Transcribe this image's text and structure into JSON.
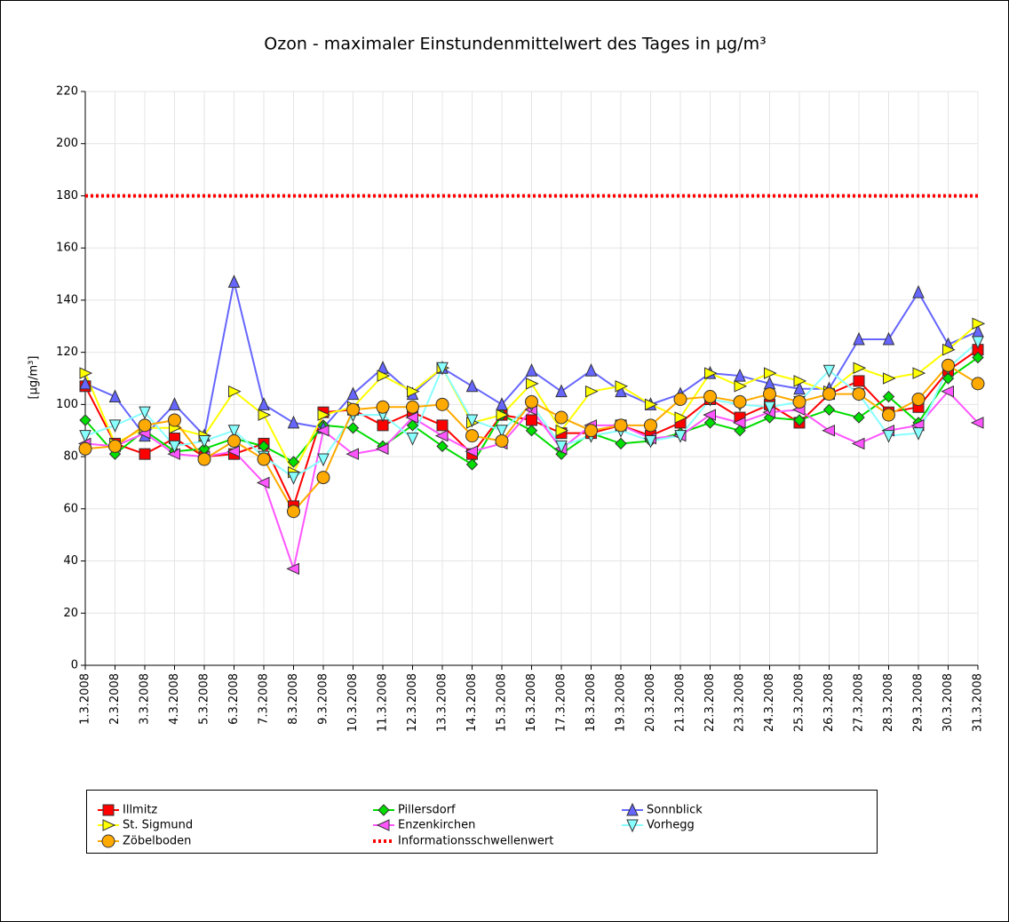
{
  "chart_data": {
    "type": "line",
    "title": "Ozon -  maximaler Einstundenmittelwert des Tages in µg/m³",
    "y_label": "[µg/m³]",
    "categories": [
      "1.3.2008",
      "2.3.2008",
      "3.3.2008",
      "4.3.2008",
      "5.3.2008",
      "6.3.2008",
      "7.3.2008",
      "8.3.2008",
      "9.3.2008",
      "10.3.2008",
      "11.3.2008",
      "12.3.2008",
      "13.3.2008",
      "14.3.2008",
      "15.3.2008",
      "16.3.2008",
      "17.3.2008",
      "18.3.2008",
      "19.3.2008",
      "20.3.2008",
      "21.3.2008",
      "22.3.2008",
      "23.3.2008",
      "24.3.2008",
      "25.3.2008",
      "26.3.2008",
      "27.3.2008",
      "28.3.2008",
      "29.3.2008",
      "30.3.2008",
      "31.3.2008"
    ],
    "ylim": [
      0,
      220
    ],
    "yticks": [
      0,
      20,
      40,
      60,
      80,
      100,
      120,
      140,
      160,
      180,
      200,
      220
    ],
    "grid": true,
    "series": [
      {
        "name": "Illmitz",
        "color": "#ff0000",
        "marker": "square",
        "values": [
          107,
          85,
          81,
          87,
          80,
          81,
          85,
          61,
          97,
          98,
          92,
          97,
          92,
          81,
          96,
          94,
          89,
          89,
          92,
          88,
          93,
          102,
          95,
          100,
          93,
          104,
          109,
          97,
          99,
          113,
          121
        ]
      },
      {
        "name": "Pillersdorf",
        "color": "#00dd00",
        "marker": "diamond",
        "values": [
          94,
          81,
          90,
          82,
          83,
          87,
          84,
          78,
          92,
          91,
          84,
          92,
          84,
          77,
          96,
          90,
          81,
          89,
          85,
          86,
          89,
          93,
          90,
          95,
          94,
          98,
          95,
          103,
          93,
          110,
          118
        ]
      },
      {
        "name": "Sonnblick",
        "color": "#6666ff",
        "marker": "triangle-up",
        "values": [
          108,
          103,
          88,
          100,
          88,
          147,
          100,
          93,
          91,
          104,
          114,
          104,
          114,
          107,
          100,
          113,
          105,
          113,
          105,
          100,
          104,
          112,
          111,
          108,
          106,
          106,
          125,
          125,
          143,
          123,
          128
        ]
      },
      {
        "name": "St. Sigmund",
        "color": "#ffff00",
        "marker": "triangle-right",
        "values": [
          112,
          85,
          91,
          91,
          88,
          105,
          96,
          74,
          96,
          99,
          111,
          105,
          114,
          93,
          96,
          108,
          90,
          105,
          107,
          100,
          95,
          112,
          107,
          112,
          109,
          105,
          114,
          110,
          112,
          121,
          131
        ]
      },
      {
        "name": "Enzenkirchen",
        "color": "#ff55ff",
        "marker": "triangle-left",
        "values": [
          85,
          84,
          89,
          81,
          80,
          82,
          70,
          37,
          90,
          81,
          83,
          95,
          88,
          82,
          85,
          98,
          83,
          92,
          92,
          87,
          88,
          96,
          93,
          97,
          98,
          90,
          85,
          90,
          92,
          105,
          93
        ]
      },
      {
        "name": "Vorhegg",
        "color": "#88ffff",
        "marker": "triangle-down",
        "values": [
          88,
          92,
          97,
          84,
          86,
          90,
          80,
          72,
          79,
          96,
          96,
          87,
          114,
          94,
          90,
          100,
          84,
          88,
          90,
          86,
          88,
          102,
          100,
          99,
          101,
          113,
          104,
          88,
          89,
          114,
          124
        ]
      },
      {
        "name": "Zöbelboden",
        "color": "#ffaa00",
        "marker": "circle",
        "values": [
          83,
          84,
          92,
          94,
          79,
          86,
          79,
          59,
          72,
          98,
          99,
          99,
          100,
          88,
          86,
          101,
          95,
          90,
          92,
          92,
          102,
          103,
          101,
          104,
          101,
          104,
          104,
          96,
          102,
          115,
          108
        ]
      }
    ],
    "threshold": {
      "name": "Informationsschwellenwert",
      "value": 180,
      "color": "#ff0000"
    }
  }
}
